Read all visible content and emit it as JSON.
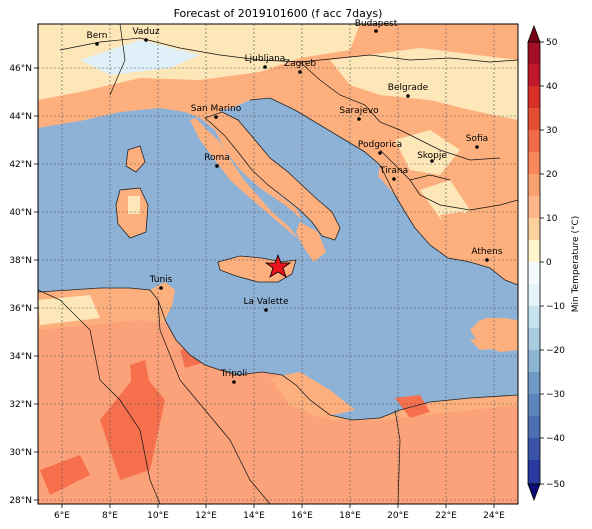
{
  "title": "Forecast of 2019101600 (f acc 7days)",
  "colorbar": {
    "label": "Min Temperature (°C)",
    "ticks": [
      "50",
      "40",
      "30",
      "20",
      "10",
      "0",
      "−10",
      "−20",
      "−30",
      "−40",
      "−50"
    ],
    "colors": [
      "#0d0d7a",
      "#2a3aa0",
      "#4b6fb0",
      "#6f9ac6",
      "#a9cde0",
      "#e4f3f7",
      "#fdf5cc",
      "#fdd0a0",
      "#f8a070",
      "#f06a48",
      "#d83028",
      "#a50f25"
    ]
  },
  "axes": {
    "x_ticks": [
      "6°E",
      "8°E",
      "10°E",
      "12°E",
      "14°E",
      "16°E",
      "18°E",
      "20°E",
      "22°E",
      "24°E"
    ],
    "y_ticks": [
      "46°N",
      "44°N",
      "42°N",
      "40°N",
      "38°N",
      "36°N",
      "34°N",
      "32°N",
      "30°N",
      "28°N"
    ]
  },
  "cities": [
    {
      "name": "Bern"
    },
    {
      "name": "Vaduz"
    },
    {
      "name": "Budapest"
    },
    {
      "name": "Ljubljana"
    },
    {
      "name": "Zagreb"
    },
    {
      "name": "Belgrade"
    },
    {
      "name": "San Marino"
    },
    {
      "name": "Sarajevo"
    },
    {
      "name": "Sofia"
    },
    {
      "name": "Podgorica"
    },
    {
      "name": "Skopje"
    },
    {
      "name": "Roma"
    },
    {
      "name": "Tirana"
    },
    {
      "name": "Athens"
    },
    {
      "name": "Tunis"
    },
    {
      "name": "La Valette"
    },
    {
      "name": "Tripoli"
    }
  ],
  "marker": {
    "icon": "red-star-icon",
    "color": "#e8131b"
  },
  "colors": {
    "sea": "#8eb1d6",
    "land_warm": "#fdb07e",
    "land_mild": "#fde7b8",
    "land_hot": "#f6704e",
    "snow": "#dff0f8"
  }
}
